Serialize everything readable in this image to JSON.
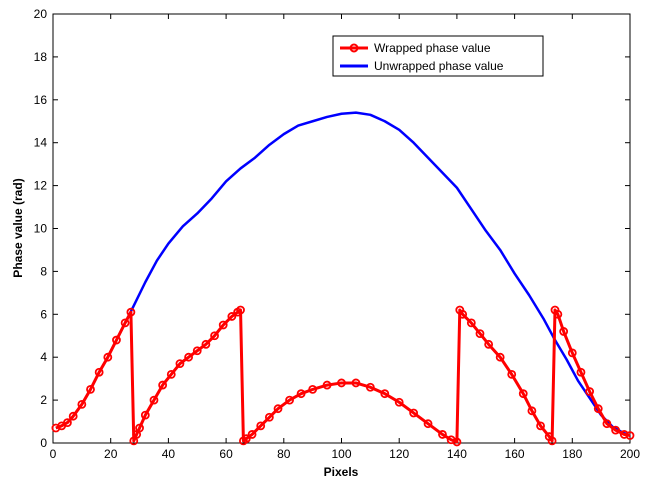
{
  "chart_data": {
    "type": "line",
    "title": "",
    "xlabel": "Pixels",
    "ylabel": "Phase value (rad)",
    "xlim": [
      0,
      200
    ],
    "ylim": [
      0,
      20
    ],
    "xticks": [
      0,
      20,
      40,
      60,
      80,
      100,
      120,
      140,
      160,
      180,
      200
    ],
    "yticks": [
      0,
      2,
      4,
      6,
      8,
      10,
      12,
      14,
      16,
      18,
      20
    ],
    "grid": false,
    "legend_position": "top-right",
    "series": [
      {
        "name": "Wrapped phase value",
        "color": "#ff0000",
        "marker": "circle",
        "x": [
          1,
          3,
          5,
          7,
          10,
          13,
          16,
          19,
          22,
          25,
          27,
          28,
          29,
          30,
          32,
          35,
          38,
          41,
          44,
          47,
          50,
          53,
          56,
          59,
          62,
          64,
          65,
          66,
          67,
          69,
          72,
          75,
          78,
          82,
          86,
          90,
          95,
          100,
          105,
          110,
          115,
          120,
          125,
          130,
          135,
          138,
          140,
          141,
          142,
          145,
          148,
          151,
          155,
          159,
          163,
          166,
          169,
          172,
          173,
          174,
          175,
          177,
          180,
          183,
          186,
          189,
          192,
          195,
          198,
          200
        ],
        "y": [
          0.7,
          0.8,
          0.95,
          1.25,
          1.8,
          2.5,
          3.3,
          4.0,
          4.8,
          5.6,
          6.1,
          0.1,
          0.4,
          0.7,
          1.3,
          2.0,
          2.7,
          3.2,
          3.7,
          4.0,
          4.3,
          4.6,
          5.0,
          5.5,
          5.9,
          6.1,
          6.2,
          0.1,
          0.2,
          0.4,
          0.8,
          1.2,
          1.6,
          2.0,
          2.3,
          2.5,
          2.7,
          2.8,
          2.8,
          2.6,
          2.3,
          1.9,
          1.4,
          0.9,
          0.4,
          0.15,
          0.05,
          6.2,
          6.0,
          5.6,
          5.1,
          4.6,
          4.0,
          3.2,
          2.3,
          1.5,
          0.8,
          0.3,
          0.1,
          6.2,
          6.0,
          5.2,
          4.2,
          3.3,
          2.4,
          1.6,
          0.9,
          0.6,
          0.4,
          0.35
        ]
      },
      {
        "name": "Unwrapped phase value",
        "color": "#0000ff",
        "marker": "none",
        "x": [
          1,
          3,
          5,
          7,
          10,
          13,
          16,
          19,
          22,
          25,
          28,
          32,
          36,
          40,
          45,
          50,
          55,
          60,
          65,
          70,
          75,
          80,
          85,
          90,
          95,
          100,
          105,
          110,
          115,
          120,
          125,
          130,
          135,
          140,
          145,
          150,
          155,
          160,
          165,
          170,
          174,
          178,
          182,
          186,
          190,
          194,
          198,
          200
        ],
        "y": [
          0.7,
          0.8,
          0.95,
          1.25,
          1.8,
          2.5,
          3.3,
          4.0,
          4.8,
          5.6,
          6.4,
          7.5,
          8.5,
          9.3,
          10.1,
          10.7,
          11.4,
          12.2,
          12.8,
          13.3,
          13.9,
          14.4,
          14.8,
          15.0,
          15.2,
          15.35,
          15.4,
          15.3,
          15.0,
          14.6,
          14.0,
          13.3,
          12.6,
          11.9,
          10.9,
          9.9,
          9.0,
          7.9,
          6.9,
          5.8,
          4.8,
          3.9,
          2.9,
          2.1,
          1.3,
          0.75,
          0.45,
          0.35
        ]
      }
    ]
  }
}
